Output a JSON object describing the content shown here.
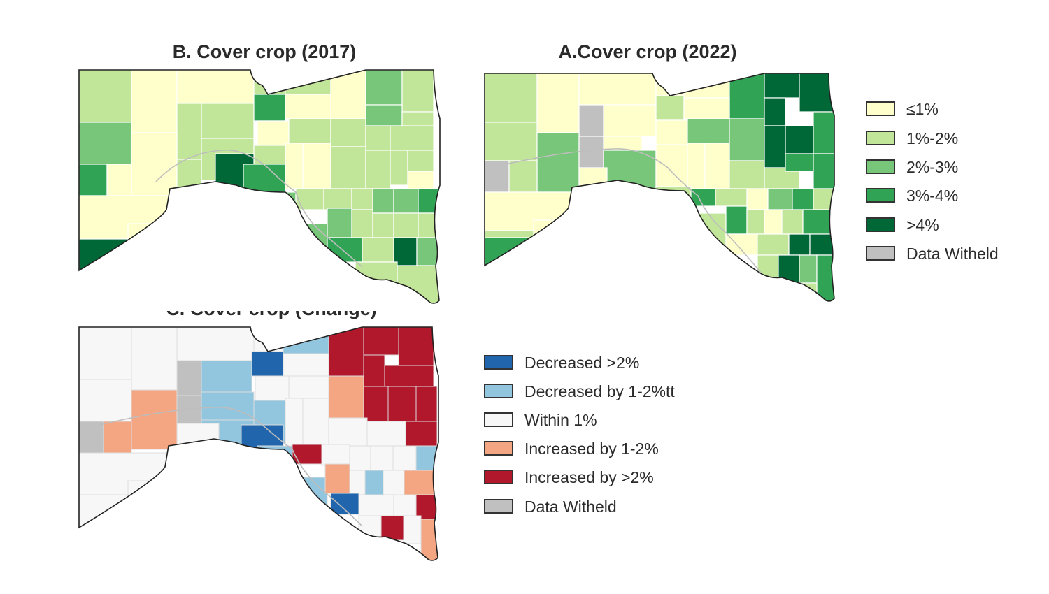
{
  "maps": {
    "cover_2017": {
      "title": "B. Cover crop (2017)"
    },
    "cover_2022": {
      "title": "A.Cover crop (2022)"
    },
    "cover_change": {
      "title": "C. Cover crop (Change)"
    }
  },
  "legend_levels": {
    "items": [
      {
        "label": "≤1%",
        "color": "#ffffcc"
      },
      {
        "label": "1%-2%",
        "color": "#c2e699"
      },
      {
        "label": "2%-3%",
        "color": "#78c679"
      },
      {
        "label": "3%-4%",
        "color": "#31a354"
      },
      {
        "label": ">4%",
        "color": "#006837"
      },
      {
        "label": "Data Witheld",
        "color": "#c0c0c0"
      }
    ]
  },
  "legend_change": {
    "items": [
      {
        "label": "Decreased >2%",
        "color": "#2166ac"
      },
      {
        "label": "Decreased by 1-2%tt",
        "color": "#92c5de"
      },
      {
        "label": "Within 1%",
        "color": "#f7f7f7"
      },
      {
        "label": "Increased by 1-2%",
        "color": "#f4a582"
      },
      {
        "label": "Increased by >2%",
        "color": "#b2182b"
      },
      {
        "label": "Data Witheld",
        "color": "#c0c0c0"
      }
    ]
  },
  "colors": {
    "county_border": "#ffffff",
    "state_border": "#222222",
    "river": "#bdbdbd"
  }
}
